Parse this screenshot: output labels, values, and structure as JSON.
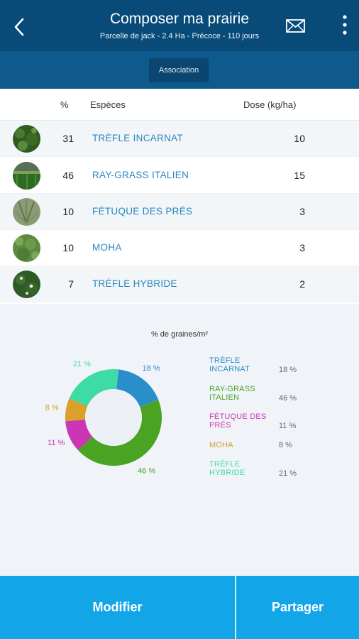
{
  "header": {
    "title": "Composer ma prairie",
    "subtitle": "Parcelle de jack - 2.4 Ha - Précoce - 110 jours"
  },
  "tab": {
    "label": "Association"
  },
  "table": {
    "headers": {
      "pct": "%",
      "species": "Espèces",
      "dose": "Dose (kg/ha)"
    },
    "rows": [
      {
        "pct": "31",
        "name": "TRÈFLE INCARNAT",
        "dose": "10"
      },
      {
        "pct": "46",
        "name": "RAY-GRASS ITALIEN",
        "dose": "15"
      },
      {
        "pct": "10",
        "name": "FÉTUQUE DES PRÉS",
        "dose": "3"
      },
      {
        "pct": "10",
        "name": "MOHA",
        "dose": "3"
      },
      {
        "pct": "7",
        "name": "TRÈFLE HYBRIDE",
        "dose": "2"
      }
    ]
  },
  "chart": {
    "title": "% de graines/m²",
    "labels": {
      "incarnat": "18 %",
      "raygrass": "46 %",
      "fetuque": "11 %",
      "moha": "8 %",
      "hybride": "21 %"
    }
  },
  "chart_data": {
    "type": "pie",
    "title": "% de graines/m²",
    "categories": [
      "TRÈFLE INCARNAT",
      "RAY-GRASS ITALIEN",
      "FÉTUQUE DES PRÉS",
      "MOHA",
      "TRÈFLE HYBRIDE"
    ],
    "values": [
      18,
      46,
      11,
      8,
      21
    ],
    "colors": [
      "#2a8ecb",
      "#4ba324",
      "#cc36b4",
      "#d9a02a",
      "#3edba5"
    ],
    "legend": "right"
  },
  "legend": [
    {
      "name": "TRÈFLE INCARNAT",
      "pct": "18 %",
      "color": "#2a8ecb"
    },
    {
      "name": "RAY-GRASS ITALIEN",
      "pct": "46 %",
      "color": "#4ba324"
    },
    {
      "name": "FÉTUQUE DES PRÉS",
      "pct": "11 %",
      "color": "#cc36b4"
    },
    {
      "name": "MOHA",
      "pct": "8 %",
      "color": "#d9a02a"
    },
    {
      "name": "TRÈFLE HYBRIDE",
      "pct": "21 %",
      "color": "#3edba5"
    }
  ],
  "footer": {
    "modify": "Modifier",
    "share": "Partager"
  },
  "icons": {
    "back": "back-arrow-icon",
    "mail": "mail-icon",
    "more": "more-vertical-icon"
  }
}
